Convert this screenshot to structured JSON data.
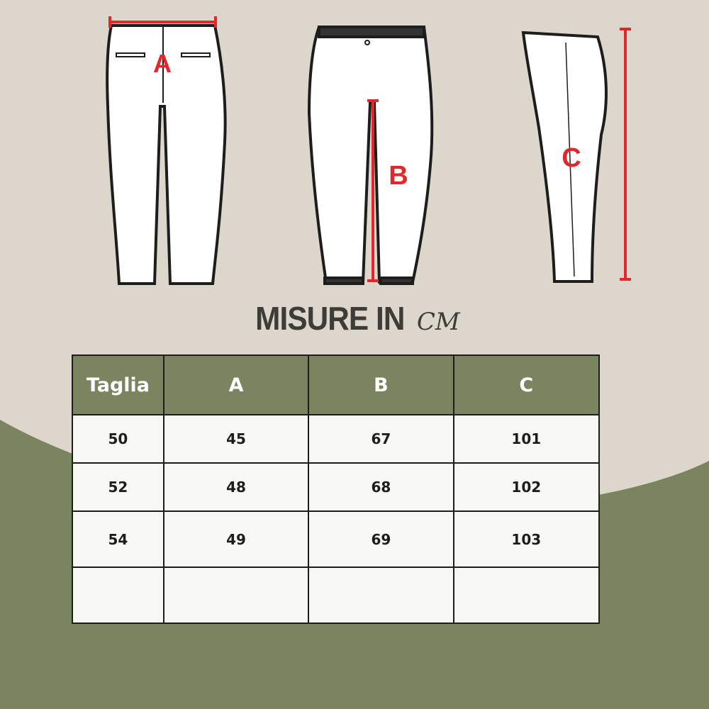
{
  "colors": {
    "background": "#dcd6cc",
    "accent_green": "#7a8560",
    "measure_red": "#e3262a",
    "text_dark": "#3e3c37"
  },
  "diagram": {
    "labels": {
      "a": "A",
      "b": "B",
      "c": "C"
    }
  },
  "title": {
    "main": "MISURE IN",
    "unit": "CM"
  },
  "table": {
    "headers": [
      "Taglia",
      "A",
      "B",
      "C"
    ],
    "rows": [
      [
        "50",
        "45",
        "67",
        "101"
      ],
      [
        "52",
        "48",
        "68",
        "102"
      ],
      [
        "54",
        "49",
        "69",
        "103"
      ],
      [
        "",
        "",
        "",
        ""
      ]
    ]
  }
}
